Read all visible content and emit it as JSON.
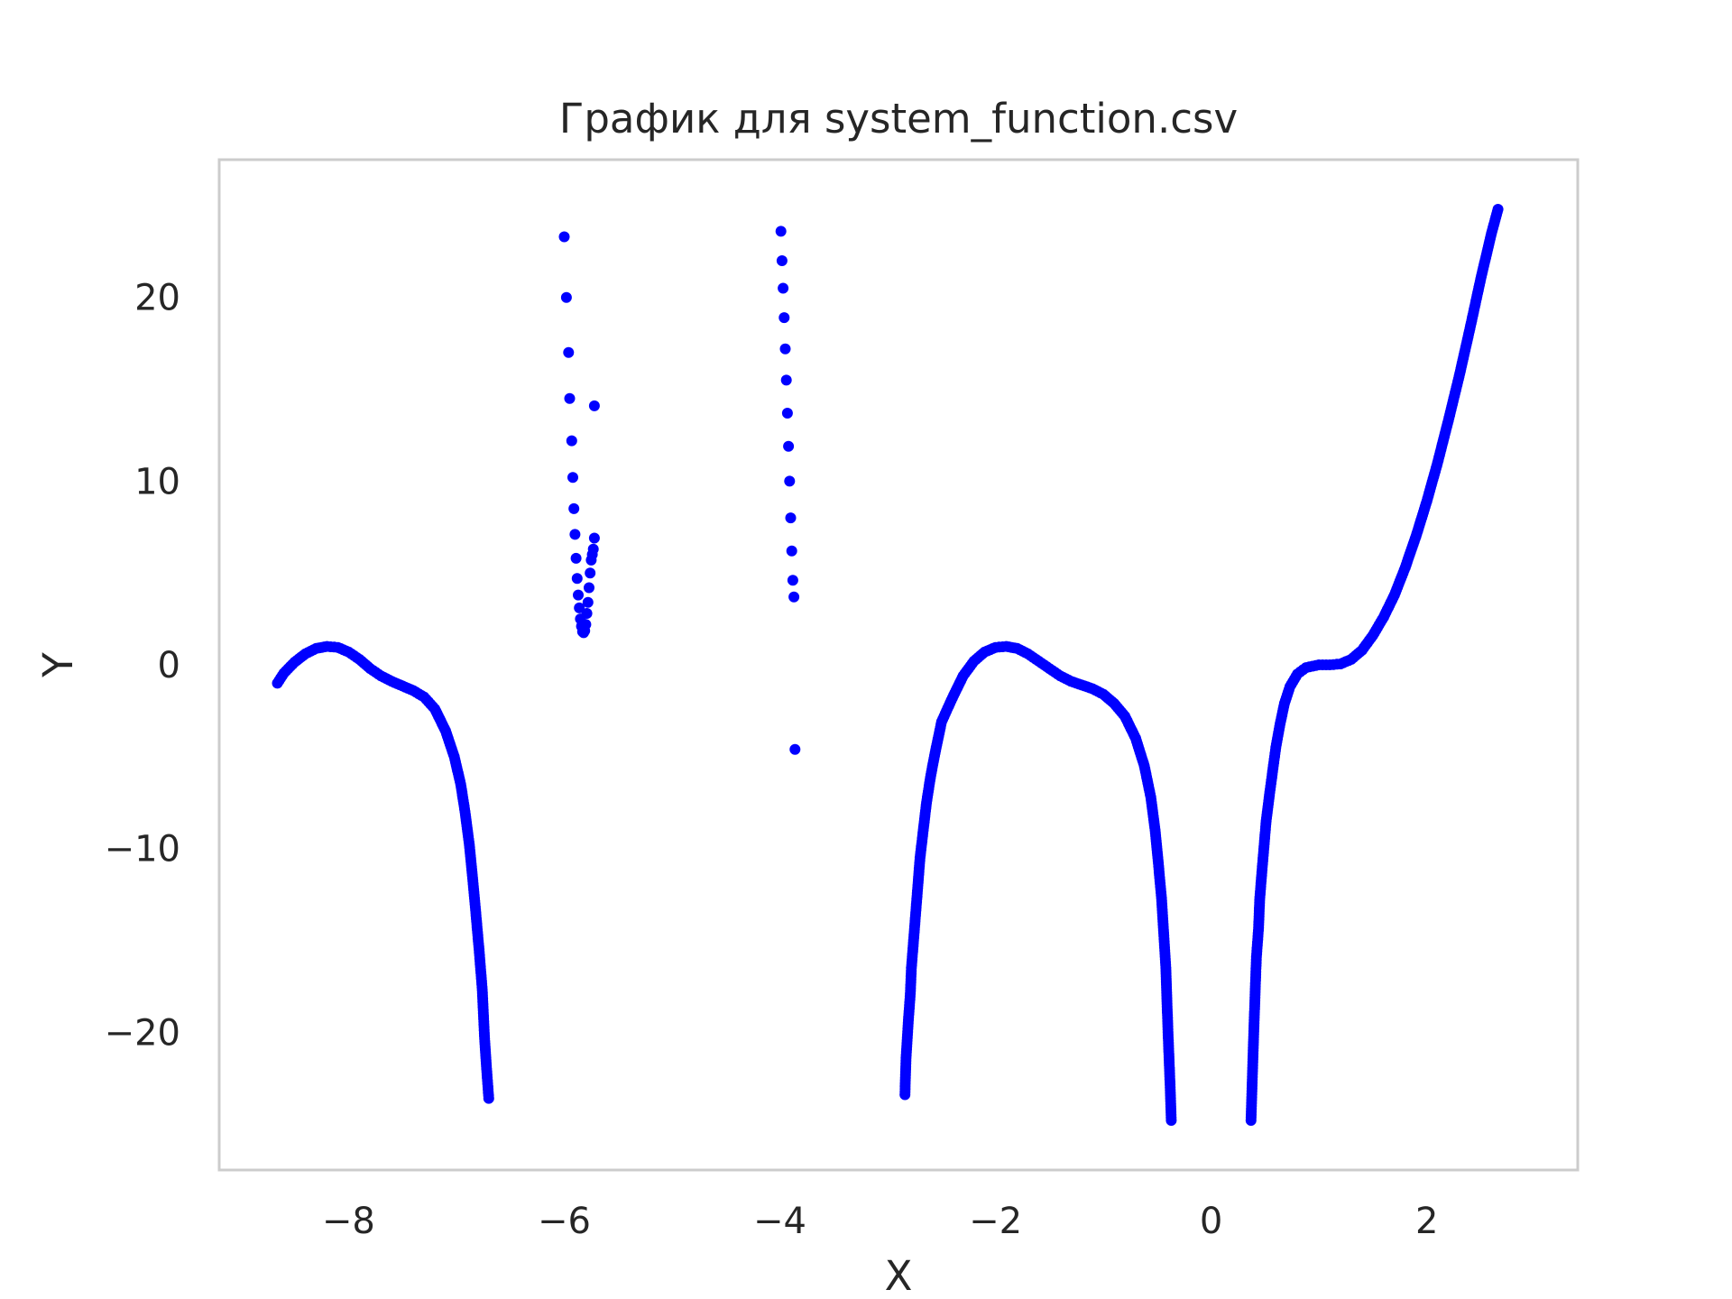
{
  "chart_data": {
    "type": "scatter",
    "title": "График для system_function.csv",
    "xlabel": "X",
    "ylabel": "Y",
    "xlim": [
      -9.2,
      3.4
    ],
    "ylim": [
      -27.5,
      27.5
    ],
    "xticks": [
      -8,
      -6,
      -4,
      -2,
      0,
      2
    ],
    "yticks": [
      -20,
      -10,
      0,
      10,
      20
    ],
    "xtick_labels": [
      "−8",
      "−6",
      "−4",
      "−2",
      "0",
      "2"
    ],
    "ytick_labels": [
      "−20",
      "−10",
      "0",
      "10",
      "20"
    ],
    "grid": false,
    "marker_color": "#0000ff",
    "series": [
      {
        "segments": [
          {
            "points": [
              [
                -8.66,
                -1.0
              ],
              [
                -8.6,
                -0.45
              ],
              [
                -8.5,
                0.15
              ],
              [
                -8.4,
                0.6
              ],
              [
                -8.3,
                0.9
              ],
              [
                -8.2,
                1.0
              ],
              [
                -8.1,
                0.95
              ],
              [
                -8.0,
                0.7
              ],
              [
                -7.9,
                0.3
              ],
              [
                -7.8,
                -0.2
              ],
              [
                -7.7,
                -0.6
              ],
              [
                -7.6,
                -0.9
              ],
              [
                -7.5,
                -1.15
              ],
              [
                -7.4,
                -1.4
              ],
              [
                -7.3,
                -1.75
              ],
              [
                -7.2,
                -2.4
              ],
              [
                -7.1,
                -3.6
              ],
              [
                -7.02,
                -5.0
              ],
              [
                -6.96,
                -6.5
              ],
              [
                -6.92,
                -8.0
              ],
              [
                -6.88,
                -9.8
              ],
              [
                -6.85,
                -11.6
              ],
              [
                -6.82,
                -13.5
              ],
              [
                -6.79,
                -15.5
              ],
              [
                -6.76,
                -17.7
              ],
              [
                -6.74,
                -20.2
              ],
              [
                -6.72,
                -22.0
              ],
              [
                -6.7,
                -23.6
              ]
            ],
            "dense": true
          },
          {
            "points": [
              [
                -6.0,
                23.3
              ],
              [
                -5.98,
                20.0
              ],
              [
                -5.96,
                17.0
              ],
              [
                -5.95,
                14.5
              ],
              [
                -5.93,
                12.2
              ],
              [
                -5.92,
                10.2
              ],
              [
                -5.91,
                8.5
              ],
              [
                -5.9,
                7.1
              ],
              [
                -5.89,
                5.8
              ],
              [
                -5.88,
                4.7
              ],
              [
                -5.87,
                3.8
              ],
              [
                -5.86,
                3.1
              ],
              [
                -5.85,
                2.5
              ],
              [
                -5.84,
                2.1
              ],
              [
                -5.83,
                1.8
              ],
              [
                -5.82,
                1.75
              ],
              [
                -5.81,
                1.85
              ],
              [
                -5.8,
                2.2
              ],
              [
                -5.79,
                2.8
              ],
              [
                -5.78,
                3.4
              ],
              [
                -5.77,
                4.2
              ],
              [
                -5.76,
                5.0
              ],
              [
                -5.75,
                5.7
              ],
              [
                -5.74,
                6.0
              ],
              [
                -5.73,
                6.3
              ],
              [
                -5.72,
                6.9
              ],
              [
                -5.72,
                14.1
              ]
            ],
            "dense": false
          },
          {
            "points": [
              [
                -3.99,
                23.6
              ],
              [
                -3.98,
                22.0
              ],
              [
                -3.97,
                20.5
              ],
              [
                -3.96,
                18.9
              ],
              [
                -3.95,
                17.2
              ],
              [
                -3.94,
                15.5
              ],
              [
                -3.93,
                13.7
              ],
              [
                -3.92,
                11.9
              ],
              [
                -3.91,
                10.0
              ],
              [
                -3.9,
                8.0
              ],
              [
                -3.89,
                6.2
              ],
              [
                -3.88,
                4.6
              ],
              [
                -3.87,
                3.7
              ],
              [
                -3.86,
                -4.6
              ]
            ],
            "dense": false
          },
          {
            "points": [
              [
                -2.84,
                -23.4
              ],
              [
                -2.83,
                -21.4
              ],
              [
                -2.81,
                -19.5
              ],
              [
                -2.79,
                -17.9
              ],
              [
                -2.78,
                -16.5
              ],
              [
                -2.76,
                -15.0
              ],
              [
                -2.74,
                -13.5
              ],
              [
                -2.72,
                -12.0
              ],
              [
                -2.7,
                -10.5
              ],
              [
                -2.67,
                -9.0
              ],
              [
                -2.64,
                -7.5
              ],
              [
                -2.6,
                -6.0
              ],
              [
                -2.55,
                -4.5
              ],
              [
                -2.5,
                -3.1
              ],
              [
                -2.4,
                -1.8
              ],
              [
                -2.3,
                -0.6
              ],
              [
                -2.2,
                0.2
              ],
              [
                -2.1,
                0.7
              ],
              [
                -2.0,
                0.95
              ],
              [
                -1.9,
                1.0
              ],
              [
                -1.8,
                0.9
              ],
              [
                -1.7,
                0.6
              ],
              [
                -1.6,
                0.2
              ],
              [
                -1.5,
                -0.2
              ],
              [
                -1.4,
                -0.6
              ],
              [
                -1.3,
                -0.9
              ],
              [
                -1.2,
                -1.1
              ],
              [
                -1.1,
                -1.3
              ],
              [
                -1.0,
                -1.6
              ],
              [
                -0.9,
                -2.1
              ],
              [
                -0.8,
                -2.8
              ],
              [
                -0.7,
                -4.0
              ],
              [
                -0.62,
                -5.5
              ],
              [
                -0.56,
                -7.2
              ],
              [
                -0.52,
                -9.0
              ],
              [
                -0.49,
                -10.8
              ],
              [
                -0.46,
                -12.7
              ],
              [
                -0.44,
                -14.6
              ],
              [
                -0.42,
                -16.5
              ],
              [
                -0.41,
                -18.3
              ],
              [
                -0.4,
                -20.0
              ],
              [
                -0.39,
                -21.5
              ],
              [
                -0.38,
                -23.0
              ],
              [
                -0.37,
                -24.8
              ]
            ],
            "dense": true
          },
          {
            "points": [
              [
                0.37,
                -24.8
              ],
              [
                0.38,
                -22.9
              ],
              [
                0.39,
                -21.0
              ],
              [
                0.4,
                -19.2
              ],
              [
                0.41,
                -17.5
              ],
              [
                0.42,
                -15.9
              ],
              [
                0.44,
                -14.3
              ],
              [
                0.45,
                -12.8
              ],
              [
                0.47,
                -11.3
              ],
              [
                0.49,
                -9.9
              ],
              [
                0.51,
                -8.5
              ],
              [
                0.54,
                -7.1
              ],
              [
                0.57,
                -5.8
              ],
              [
                0.6,
                -4.5
              ],
              [
                0.64,
                -3.2
              ],
              [
                0.68,
                -2.1
              ],
              [
                0.73,
                -1.2
              ],
              [
                0.8,
                -0.5
              ],
              [
                0.88,
                -0.15
              ],
              [
                1.0,
                0.0
              ],
              [
                1.1,
                0.0
              ],
              [
                1.2,
                0.05
              ],
              [
                1.3,
                0.3
              ],
              [
                1.4,
                0.8
              ],
              [
                1.5,
                1.6
              ],
              [
                1.6,
                2.6
              ],
              [
                1.7,
                3.8
              ],
              [
                1.8,
                5.3
              ],
              [
                1.9,
                7.0
              ],
              [
                2.0,
                8.9
              ],
              [
                2.1,
                11.0
              ],
              [
                2.2,
                13.3
              ],
              [
                2.3,
                15.7
              ],
              [
                2.4,
                18.3
              ],
              [
                2.5,
                21.0
              ],
              [
                2.6,
                23.5
              ],
              [
                2.66,
                24.8
              ]
            ],
            "dense": true
          }
        ]
      }
    ]
  }
}
